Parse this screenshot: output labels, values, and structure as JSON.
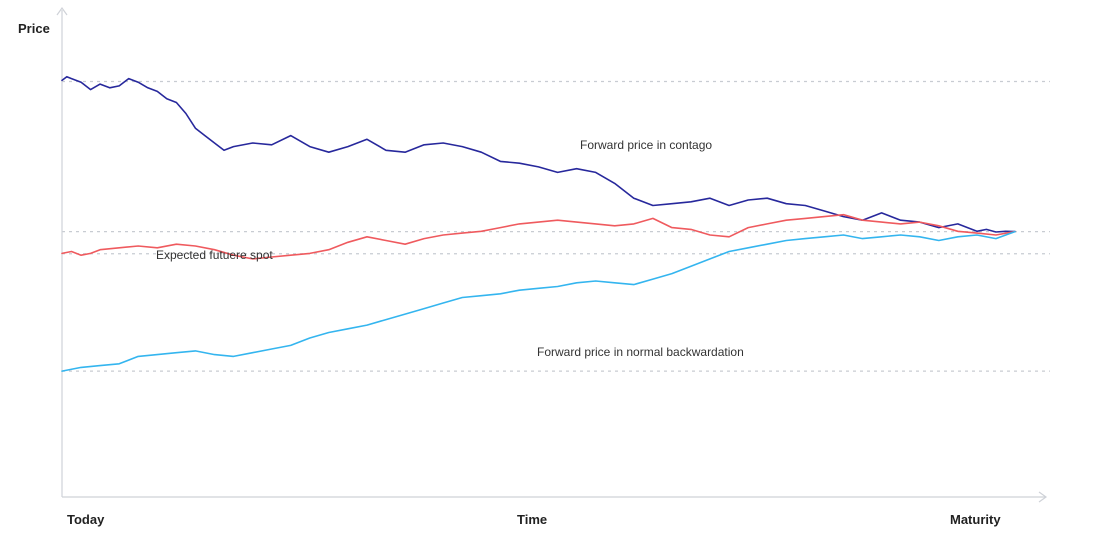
{
  "chart_data": {
    "type": "line",
    "title": "",
    "ylabel": "Price",
    "x_ticks": [
      "Today",
      "Time",
      "Maturity"
    ],
    "xlim": [
      0,
      1
    ],
    "ylim": [
      0,
      1
    ],
    "y_axis_values_printed": false,
    "grid": "dashed horizontal reference lines",
    "reference_lines_y": [
      0.947,
      0.539,
      0.479,
      0.16
    ],
    "colors": {
      "contango": "#27289c",
      "spot": "#ef5a5e",
      "backwardation": "#34b5ef",
      "axis": "#cfd2d8",
      "grid": "#c8ccd2"
    },
    "series": [
      {
        "name": "Forward price in contago",
        "color": "#27289c",
        "x": [
          0,
          0.005,
          0.01,
          0.02,
          0.03,
          0.04,
          0.05,
          0.06,
          0.07,
          0.08,
          0.09,
          0.1,
          0.11,
          0.12,
          0.13,
          0.14,
          0.15,
          0.16,
          0.17,
          0.18,
          0.2,
          0.22,
          0.24,
          0.26,
          0.28,
          0.3,
          0.32,
          0.34,
          0.36,
          0.38,
          0.4,
          0.42,
          0.44,
          0.46,
          0.48,
          0.5,
          0.52,
          0.54,
          0.56,
          0.58,
          0.6,
          0.62,
          0.64,
          0.66,
          0.68,
          0.7,
          0.72,
          0.74,
          0.76,
          0.78,
          0.8,
          0.82,
          0.84,
          0.86,
          0.88,
          0.9,
          0.92,
          0.94,
          0.96,
          0.97,
          0.98,
          0.99,
          1.0
        ],
        "y": [
          0.95,
          0.96,
          0.955,
          0.945,
          0.925,
          0.94,
          0.93,
          0.935,
          0.955,
          0.945,
          0.93,
          0.92,
          0.9,
          0.89,
          0.86,
          0.82,
          0.8,
          0.78,
          0.76,
          0.77,
          0.78,
          0.775,
          0.8,
          0.77,
          0.755,
          0.77,
          0.79,
          0.76,
          0.755,
          0.775,
          0.78,
          0.77,
          0.755,
          0.73,
          0.725,
          0.715,
          0.7,
          0.71,
          0.7,
          0.67,
          0.63,
          0.61,
          0.615,
          0.62,
          0.63,
          0.61,
          0.625,
          0.63,
          0.615,
          0.61,
          0.595,
          0.58,
          0.57,
          0.59,
          0.57,
          0.565,
          0.55,
          0.56,
          0.54,
          0.545,
          0.538,
          0.54,
          0.539
        ]
      },
      {
        "name": "Expected futuere spot",
        "color": "#ef5a5e",
        "x": [
          0,
          0.01,
          0.02,
          0.03,
          0.04,
          0.06,
          0.08,
          0.1,
          0.12,
          0.14,
          0.16,
          0.18,
          0.2,
          0.22,
          0.24,
          0.26,
          0.28,
          0.3,
          0.32,
          0.34,
          0.36,
          0.38,
          0.4,
          0.42,
          0.44,
          0.46,
          0.48,
          0.5,
          0.52,
          0.54,
          0.56,
          0.58,
          0.6,
          0.62,
          0.64,
          0.66,
          0.68,
          0.7,
          0.72,
          0.74,
          0.76,
          0.78,
          0.8,
          0.82,
          0.84,
          0.86,
          0.88,
          0.9,
          0.92,
          0.94,
          0.96,
          0.98,
          1.0
        ],
        "y": [
          0.48,
          0.485,
          0.475,
          0.48,
          0.49,
          0.495,
          0.5,
          0.495,
          0.505,
          0.5,
          0.49,
          0.475,
          0.465,
          0.47,
          0.475,
          0.48,
          0.49,
          0.51,
          0.525,
          0.515,
          0.505,
          0.52,
          0.53,
          0.535,
          0.54,
          0.55,
          0.56,
          0.565,
          0.57,
          0.565,
          0.56,
          0.555,
          0.56,
          0.575,
          0.55,
          0.545,
          0.53,
          0.525,
          0.55,
          0.56,
          0.57,
          0.575,
          0.58,
          0.585,
          0.57,
          0.565,
          0.56,
          0.565,
          0.555,
          0.54,
          0.535,
          0.53,
          0.539
        ]
      },
      {
        "name": "Forward price in normal backwardation",
        "color": "#34b5ef",
        "x": [
          0,
          0.02,
          0.04,
          0.06,
          0.08,
          0.1,
          0.12,
          0.14,
          0.16,
          0.18,
          0.2,
          0.22,
          0.24,
          0.26,
          0.28,
          0.3,
          0.32,
          0.34,
          0.36,
          0.38,
          0.4,
          0.42,
          0.44,
          0.46,
          0.48,
          0.5,
          0.52,
          0.54,
          0.56,
          0.58,
          0.6,
          0.62,
          0.64,
          0.66,
          0.68,
          0.7,
          0.72,
          0.74,
          0.76,
          0.78,
          0.8,
          0.82,
          0.84,
          0.86,
          0.88,
          0.9,
          0.92,
          0.94,
          0.96,
          0.98,
          1.0
        ],
        "y": [
          0.16,
          0.17,
          0.175,
          0.18,
          0.2,
          0.205,
          0.21,
          0.215,
          0.205,
          0.2,
          0.21,
          0.22,
          0.23,
          0.25,
          0.265,
          0.275,
          0.285,
          0.3,
          0.315,
          0.33,
          0.345,
          0.36,
          0.365,
          0.37,
          0.38,
          0.385,
          0.39,
          0.4,
          0.405,
          0.4,
          0.395,
          0.41,
          0.425,
          0.445,
          0.465,
          0.485,
          0.495,
          0.505,
          0.515,
          0.52,
          0.525,
          0.53,
          0.52,
          0.525,
          0.53,
          0.525,
          0.515,
          0.525,
          0.53,
          0.52,
          0.539
        ]
      }
    ],
    "annotations": [
      {
        "text": "Forward price in contago",
        "series": 0
      },
      {
        "text": "Expected futuere spot",
        "series": 1
      },
      {
        "text": "Forward price in normal backwardation",
        "series": 2
      }
    ]
  }
}
